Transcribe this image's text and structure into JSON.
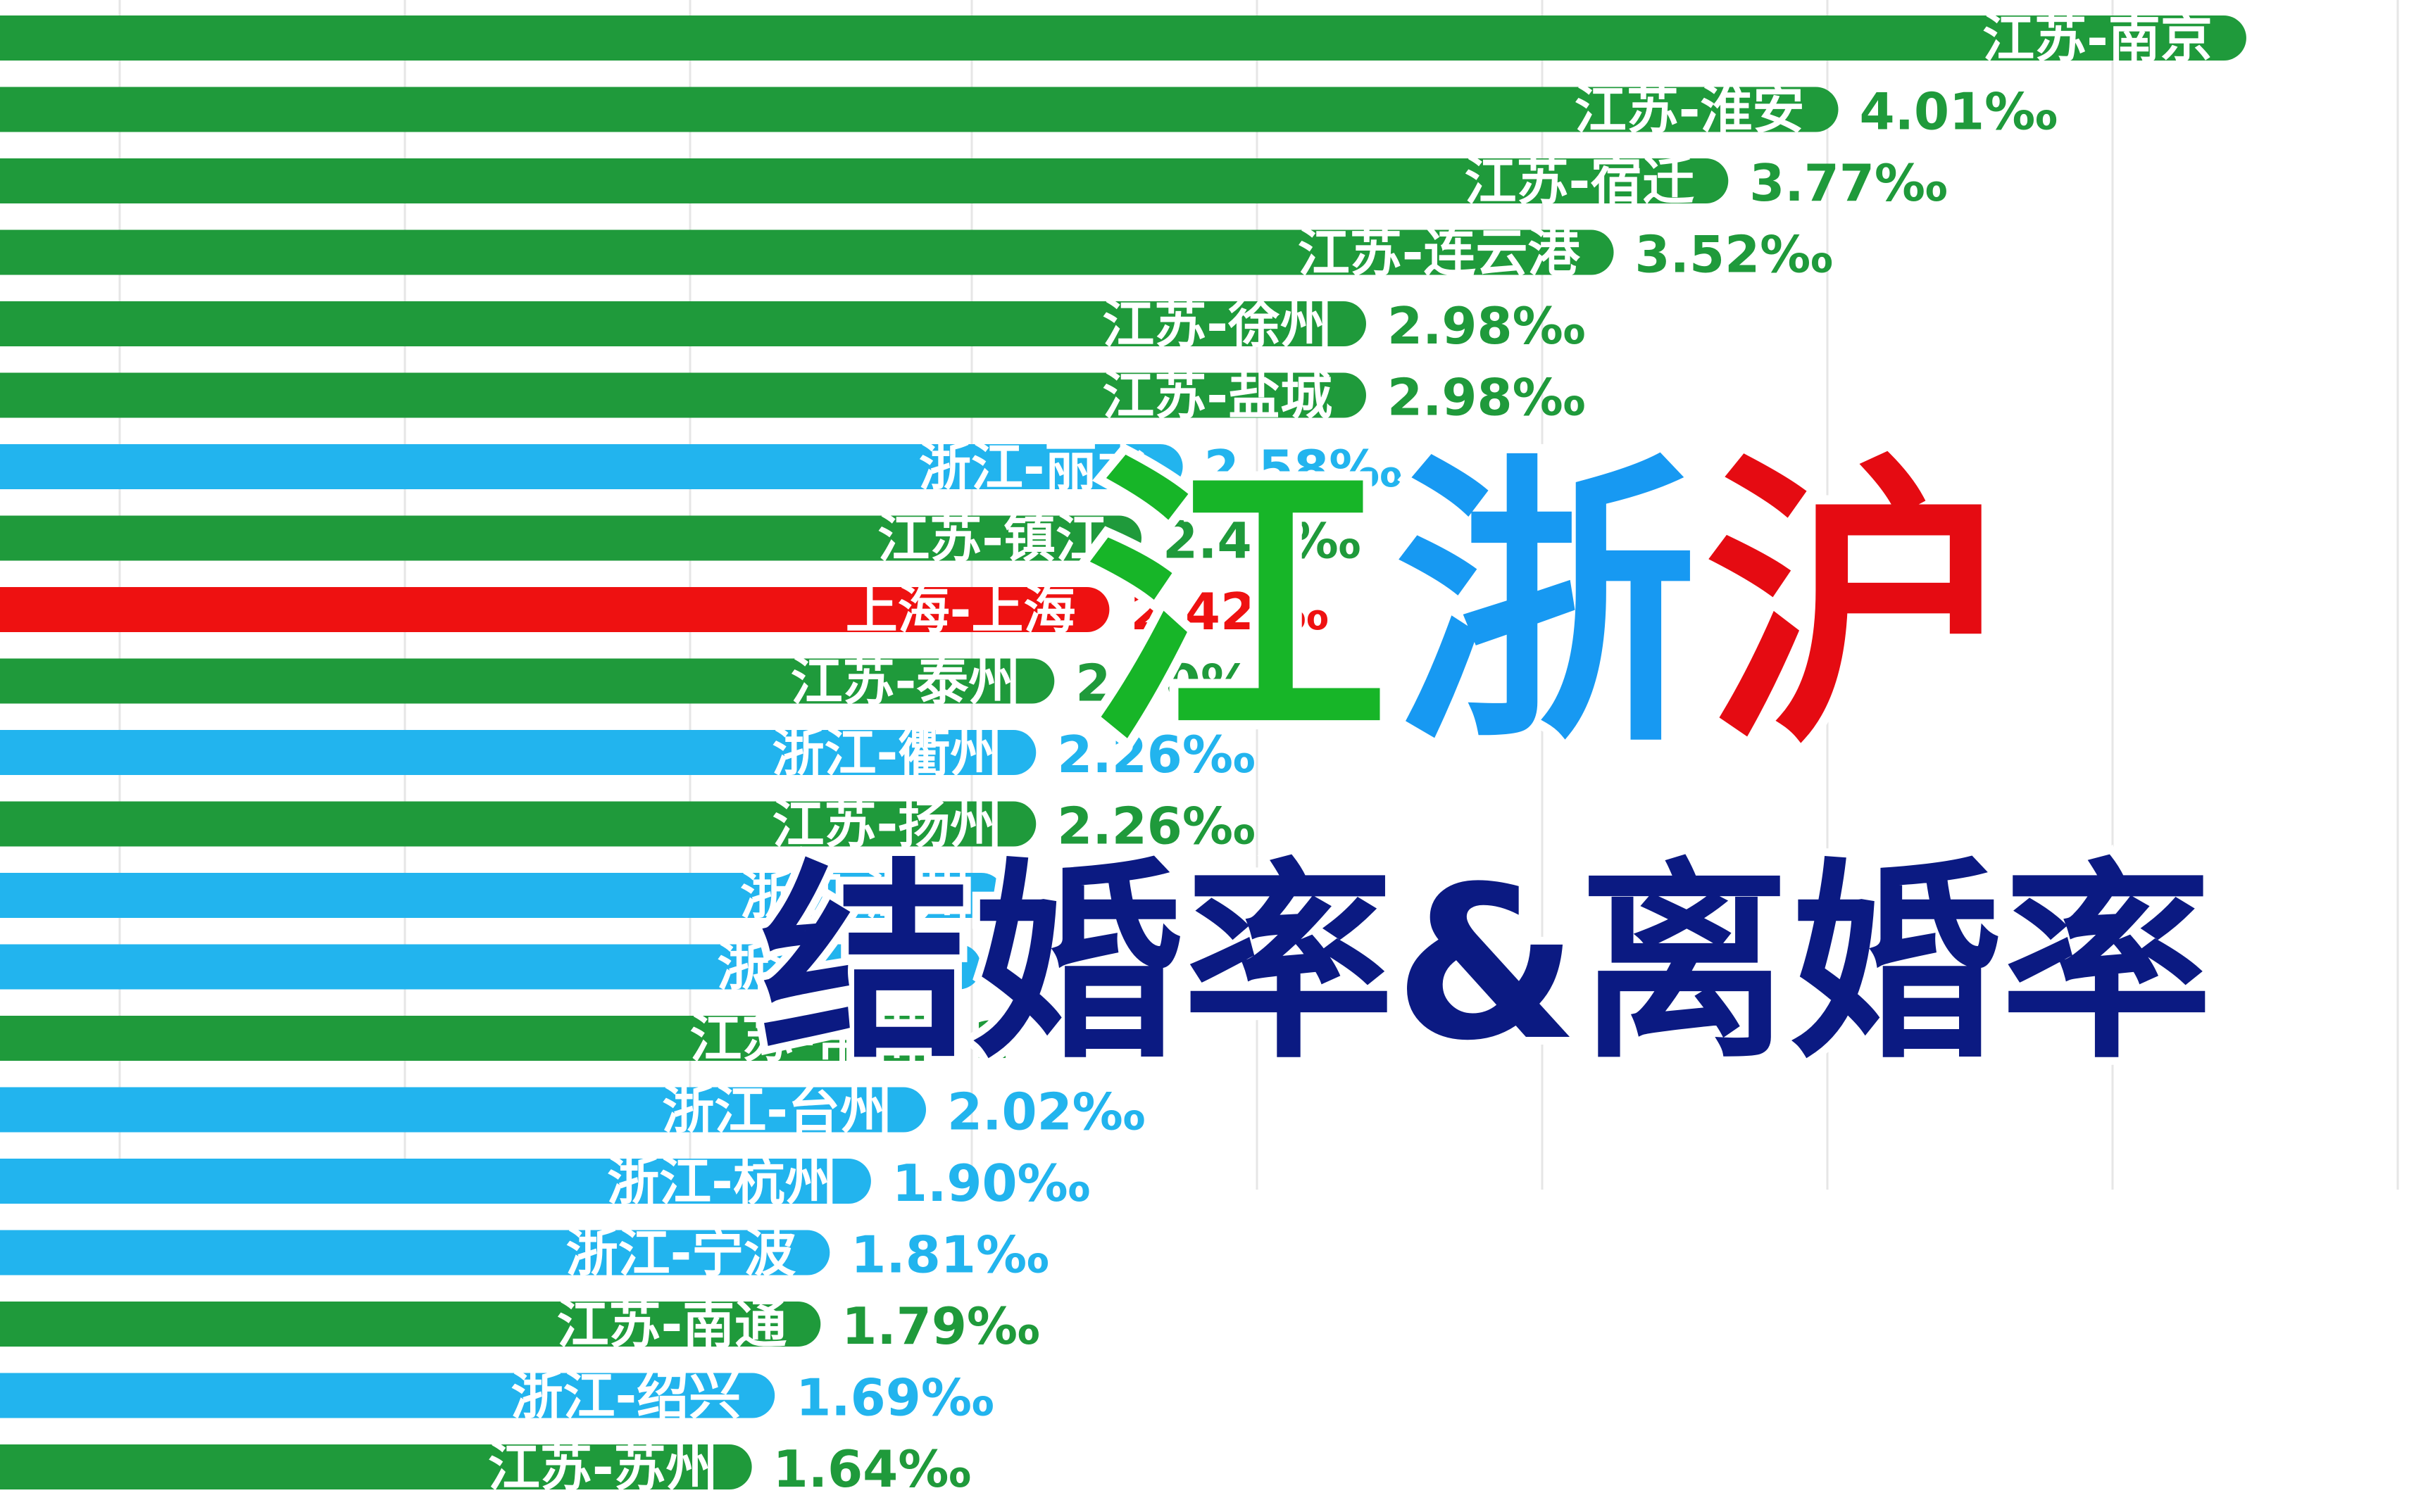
{
  "colors": {
    "jiangsu": "#1f9a3b",
    "zhejiang": "#22b4ee",
    "shanghai": "#ee1111",
    "title_jiang": "#17b528",
    "title_zhe": "#1799f2",
    "title_hu": "#e50b12",
    "subtitle": "#0b1a82",
    "grid": "#e6e6e6"
  },
  "title": {
    "jiang": "江",
    "zhe": "浙",
    "hu": "沪",
    "subtitle": "结婚率&离婚率"
  },
  "chart_data": {
    "type": "bar",
    "orientation": "horizontal",
    "unit": "‰",
    "grid": true,
    "bars": [
      {
        "label": "江苏-南京",
        "value": 4.9,
        "value_text": "",
        "group": "jiangsu"
      },
      {
        "label": "江苏-淮安",
        "value": 4.01,
        "value_text": "4.01‰",
        "group": "jiangsu"
      },
      {
        "label": "江苏-宿迁",
        "value": 3.77,
        "value_text": "3.77‰",
        "group": "jiangsu"
      },
      {
        "label": "江苏-连云港",
        "value": 3.52,
        "value_text": "3.52‰",
        "group": "jiangsu"
      },
      {
        "label": "江苏-徐州",
        "value": 2.98,
        "value_text": "2.98‰",
        "group": "jiangsu"
      },
      {
        "label": "江苏-盐城",
        "value": 2.98,
        "value_text": "2.98‰",
        "group": "jiangsu"
      },
      {
        "label": "浙江-丽水",
        "value": 2.58,
        "value_text": "2.58‰",
        "group": "zhejiang"
      },
      {
        "label": "江苏-镇江",
        "value": 2.49,
        "value_text": "2.49‰",
        "group": "jiangsu"
      },
      {
        "label": "上海-上海",
        "value": 2.42,
        "value_text": "2.42‰",
        "group": "shanghai"
      },
      {
        "label": "江苏-泰州",
        "value": 2.3,
        "value_text": "2.30‰",
        "group": "jiangsu"
      },
      {
        "label": "浙江-衢州",
        "value": 2.26,
        "value_text": "2.26‰",
        "group": "zhejiang"
      },
      {
        "label": "江苏-扬州",
        "value": 2.26,
        "value_text": "2.26‰",
        "group": "jiangsu"
      },
      {
        "label": "浙江-湖州",
        "value": 2.19,
        "value_text": "",
        "group": "zhejiang"
      },
      {
        "label": "浙江-舟山",
        "value": 2.14,
        "value_text": "",
        "group": "zhejiang"
      },
      {
        "label": "江苏-常州",
        "value": 2.08,
        "value_text": "2",
        "group": "jiangsu"
      },
      {
        "label": "浙江-台州",
        "value": 2.02,
        "value_text": "2.02‰",
        "group": "zhejiang"
      },
      {
        "label": "浙江-杭州",
        "value": 1.9,
        "value_text": "1.90‰",
        "group": "zhejiang"
      },
      {
        "label": "浙江-宁波",
        "value": 1.81,
        "value_text": "1.81‰",
        "group": "zhejiang"
      },
      {
        "label": "江苏-南通",
        "value": 1.79,
        "value_text": "1.79‰",
        "group": "jiangsu"
      },
      {
        "label": "浙江-绍兴",
        "value": 1.69,
        "value_text": "1.69‰",
        "group": "zhejiang"
      },
      {
        "label": "江苏-苏州",
        "value": 1.64,
        "value_text": "1.64‰",
        "group": "jiangsu"
      }
    ]
  }
}
